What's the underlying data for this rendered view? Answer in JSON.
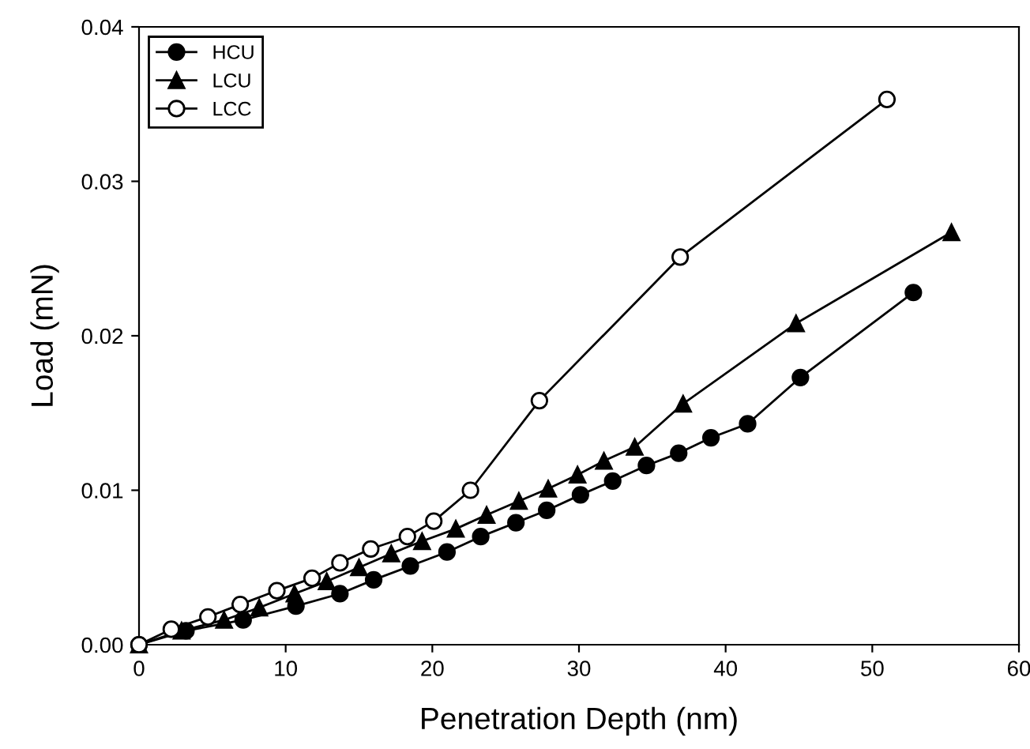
{
  "chart_data": {
    "type": "line",
    "xlabel": "Penetration Depth (nm)",
    "ylabel": "Load (mN)",
    "xlim": [
      0,
      60
    ],
    "ylim": [
      0,
      0.04
    ],
    "xticks": [
      0,
      10,
      20,
      30,
      40,
      50,
      60
    ],
    "yticks": [
      {
        "value": 0,
        "label": "0.00"
      },
      {
        "value": 0.01,
        "label": "0.01"
      },
      {
        "value": 0.02,
        "label": "0.02"
      },
      {
        "value": 0.03,
        "label": "0.03"
      },
      {
        "value": 0.04,
        "label": "0.04"
      }
    ],
    "grid": false,
    "legend": "top left",
    "series": [
      {
        "name": "HCU",
        "color": "#000000",
        "marker": "circle",
        "x": [
          0,
          3.2,
          7.1,
          10.7,
          13.7,
          16.0,
          18.5,
          21.0,
          23.3,
          25.7,
          27.8,
          30.1,
          32.3,
          34.6,
          36.8,
          39.0,
          41.5,
          45.1,
          52.8
        ],
        "values": [
          0,
          0.0009,
          0.0016,
          0.0025,
          0.0033,
          0.0042,
          0.0051,
          0.006,
          0.007,
          0.0079,
          0.0087,
          0.0097,
          0.0106,
          0.0116,
          0.0124,
          0.0134,
          0.0143,
          0.0173,
          0.0228
        ]
      },
      {
        "name": "LCU",
        "color": "#000000",
        "marker": "triangle",
        "x": [
          0,
          2.9,
          5.8,
          8.2,
          10.6,
          12.8,
          15.0,
          17.2,
          19.3,
          21.6,
          23.7,
          25.9,
          27.9,
          29.9,
          31.7,
          33.8,
          37.1,
          44.8,
          55.4
        ],
        "values": [
          0,
          0.0009,
          0.0016,
          0.0024,
          0.0033,
          0.0041,
          0.005,
          0.0059,
          0.0067,
          0.0075,
          0.0084,
          0.0093,
          0.0101,
          0.011,
          0.0119,
          0.0128,
          0.0156,
          0.0208,
          0.0267
        ]
      },
      {
        "name": "LCC",
        "color": "#000000",
        "marker": "circle",
        "x": [
          0,
          2.2,
          4.7,
          6.9,
          9.4,
          11.8,
          13.7,
          15.8,
          18.3,
          20.1,
          22.6,
          27.3,
          36.9,
          51.0
        ],
        "values": [
          0,
          0.001,
          0.0018,
          0.0026,
          0.0035,
          0.0043,
          0.0053,
          0.0062,
          0.007,
          0.008,
          0.01,
          0.0158,
          0.0251,
          0.0353
        ]
      }
    ]
  }
}
